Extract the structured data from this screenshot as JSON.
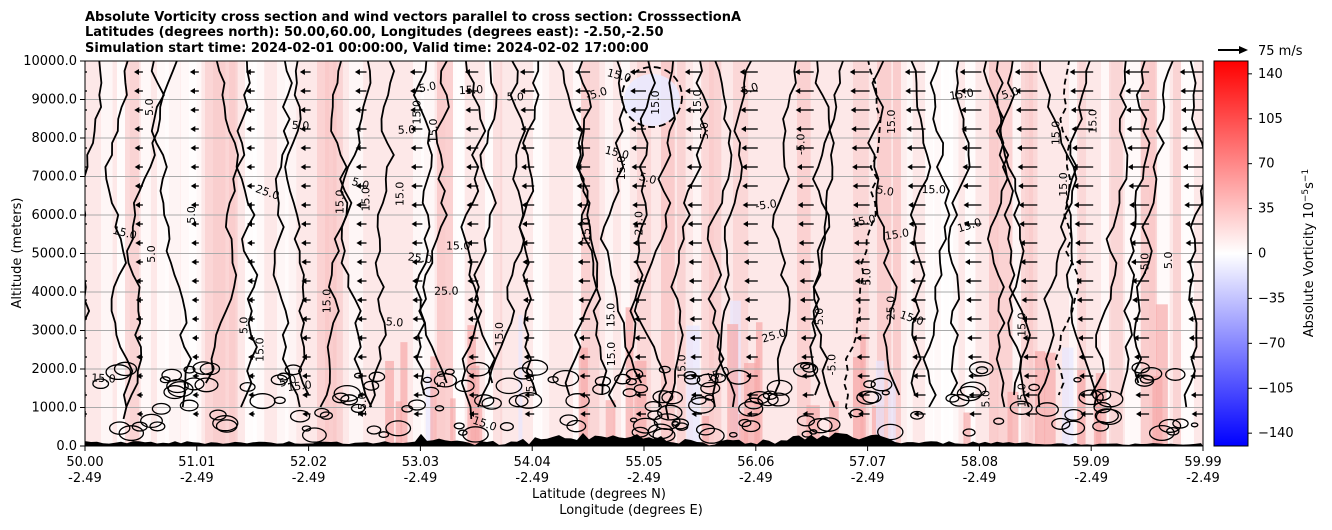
{
  "chart_data": {
    "type": "heatmap",
    "title_lines": [
      "Absolute Vorticity cross section and wind vectors parallel to cross section: CrosssectionA",
      "Latitudes (degrees north): 50.00,60.00, Longitudes (degrees east): -2.50,-2.50",
      "Simulation start time: 2024-02-01 00:00:00, Valid time: 2024-02-02 17:00:00"
    ],
    "ylabel": "Altitude (meters)",
    "xlabel_lat": "Latitude (degrees N)",
    "xlabel_lon": "Longitude (degrees E)",
    "y_ticks": [
      "0.0",
      "1000.0",
      "2000.0",
      "3000.0",
      "4000.0",
      "5000.0",
      "6000.0",
      "7000.0",
      "8000.0",
      "9000.0",
      "10000.0"
    ],
    "ylim": [
      0,
      10000
    ],
    "x_ticks_lat": [
      "50.00",
      "51.01",
      "52.02",
      "53.03",
      "54.04",
      "55.05",
      "56.06",
      "57.07",
      "58.08",
      "59.09",
      "59.99"
    ],
    "x_ticks_lon": [
      "-2.49",
      "-2.49",
      "-2.49",
      "-2.49",
      "-2.49",
      "-2.49",
      "-2.49",
      "-2.49",
      "-2.49",
      "-2.49",
      "-2.49"
    ],
    "xlim": [
      50.0,
      59.99
    ],
    "grid": "horizontal",
    "colorbar": {
      "label": "Absolute Vorticity 10",
      "label_exp": "−5",
      "label_unit": "s",
      "label_unit_exp": "−1",
      "ticks": [
        "140",
        "105",
        "70",
        "35",
        "0",
        "−35",
        "−70",
        "−105",
        "−140"
      ],
      "range": [
        -150,
        150
      ],
      "colors": {
        "low": "#0000ff",
        "mid": "#ffffff",
        "high": "#ff0000"
      }
    },
    "quiver_key": "75 m/s",
    "contour_labels": [
      "5.0",
      "15.0",
      "-5.0",
      "25.0"
    ],
    "terrain_color": "#000000"
  }
}
